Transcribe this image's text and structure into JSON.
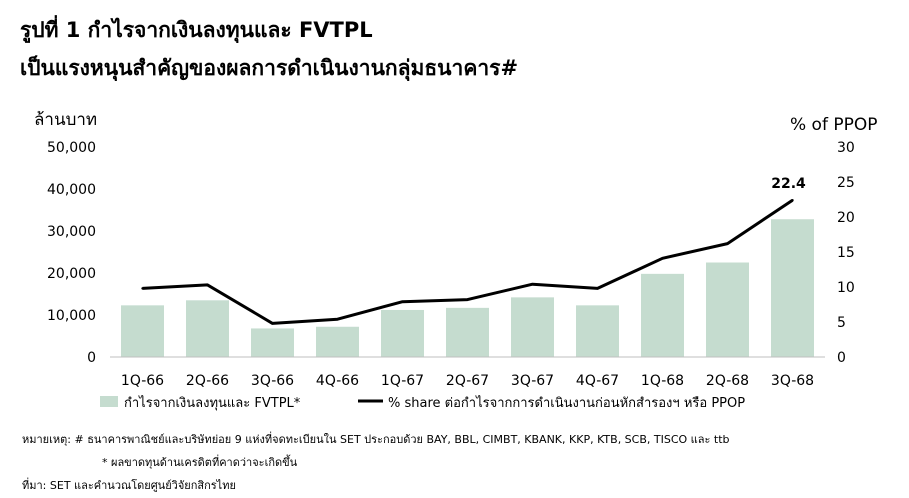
{
  "chart_data": {
    "type": "bar+line",
    "title": "รูปที่ 1 กำไรจากเงินลงทุนและ FVTPL",
    "subtitle": "เป็นแรงหนุนสำคัญของผลการดำเนินงานกลุ่มธนาคาร#",
    "left_axis_label": "ล้านบาท",
    "right_axis_label": "% of PPOP",
    "categories": [
      "1Q-66",
      "2Q-66",
      "3Q-66",
      "4Q-66",
      "1Q-67",
      "2Q-67",
      "3Q-67",
      "4Q-67",
      "1Q-68",
      "2Q-68",
      "3Q-68"
    ],
    "left_ticks": [
      "50,000",
      "40,000",
      "30,000",
      "20,000",
      "10,000",
      "0"
    ],
    "right_ticks": [
      "30",
      "25",
      "20",
      "15",
      "10",
      "5",
      "0"
    ],
    "ylim_left": [
      0,
      50000
    ],
    "ylim_right": [
      0,
      30
    ],
    "series": [
      {
        "name": "กำไรจากเงินลงทุนและ FVTPL*",
        "type": "bar",
        "axis": "left",
        "color": "#c5dccf",
        "values": [
          12300,
          13500,
          6800,
          7200,
          11200,
          11700,
          14200,
          12300,
          19800,
          22500,
          32800
        ]
      },
      {
        "name": "% share ต่อกำไรจากการดำเนินงานก่อนหักสำรองฯ หรือ PPOP",
        "type": "line",
        "axis": "right",
        "color": "#000000",
        "values": [
          9.8,
          10.3,
          4.8,
          5.4,
          7.9,
          8.2,
          10.4,
          9.8,
          14.1,
          16.2,
          22.4
        ]
      }
    ],
    "annotation": "22.4",
    "grid": false,
    "legend_position": "bottom"
  },
  "notes": {
    "line1": "หมายเหตุ:  # ธนาคารพาณิชย์และบริษัทย่อย 9 แห่งที่จดทะเบียนใน SET ประกอบด้วย BAY, BBL, CIMBT, KBANK, KKP, KTB, SCB, TISCO และ ttb",
    "line2": "* ผลขาดทุนด้านเครดิตที่คาดว่าจะเกิดขึ้น",
    "line3": "ที่มา: SET และคำนวณโดยศูนย์วิจัยกสิกรไทย"
  }
}
